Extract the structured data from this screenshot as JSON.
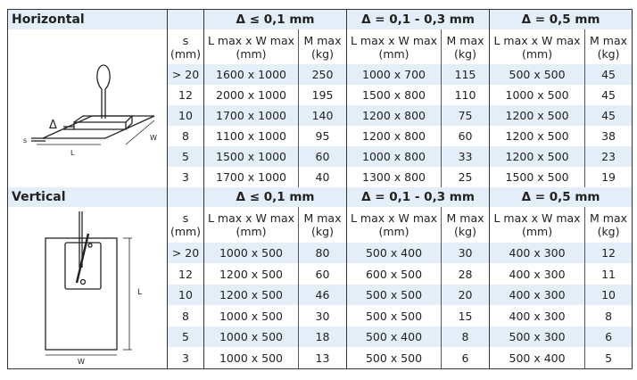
{
  "sections": [
    {
      "title": "Horizontal",
      "deltas": [
        "Δ ≤ 0,1 mm",
        "Δ = 0,1 - 0,3 mm",
        "Δ = 0,5 mm"
      ],
      "columns": {
        "s": [
          "s",
          "(mm)"
        ],
        "lw": [
          "L max x W max",
          "(mm)"
        ],
        "m": [
          "M max",
          "(kg)"
        ]
      },
      "diagram_labels": {
        "s": "s",
        "delta": "Δ",
        "l": "L",
        "w": "W"
      },
      "rows": [
        {
          "s": "> 20",
          "c": [
            "1600 x 1000",
            "250",
            "1000 x 700",
            "115",
            "500 x 500",
            "45"
          ]
        },
        {
          "s": "12",
          "c": [
            "2000 x 1000",
            "195",
            "1500 x 800",
            "110",
            "1000 x 500",
            "45"
          ]
        },
        {
          "s": "10",
          "c": [
            "1700 x 1000",
            "140",
            "1200 x 800",
            "75",
            "1200 x 500",
            "45"
          ]
        },
        {
          "s": "8",
          "c": [
            "1100 x 1000",
            "95",
            "1200 x 800",
            "60",
            "1200 x 500",
            "38"
          ]
        },
        {
          "s": "5",
          "c": [
            "1500 x 1000",
            "60",
            "1000 x 800",
            "33",
            "1200 x 500",
            "23"
          ]
        },
        {
          "s": "3",
          "c": [
            "1700 x 1000",
            "40",
            "1300 x 800",
            "25",
            "1500 x 500",
            "19"
          ]
        }
      ]
    },
    {
      "title": "Vertical",
      "deltas": [
        "Δ ≤ 0,1 mm",
        "Δ = 0,1 - 0,3 mm",
        "Δ = 0,5 mm"
      ],
      "columns": {
        "s": [
          "s",
          "(mm)"
        ],
        "lw": [
          "L max x W max",
          "(mm)"
        ],
        "m": [
          "M max",
          "(kg)"
        ]
      },
      "diagram_labels": {
        "l": "L",
        "w": "W"
      },
      "rows": [
        {
          "s": "> 20",
          "c": [
            "1000 x 500",
            "80",
            "500 x 400",
            "30",
            "400 x 300",
            "12"
          ]
        },
        {
          "s": "12",
          "c": [
            "1200 x 500",
            "60",
            "600 x 500",
            "28",
            "400 x 300",
            "11"
          ]
        },
        {
          "s": "10",
          "c": [
            "1200 x 500",
            "46",
            "500 x 500",
            "20",
            "400 x 300",
            "10"
          ]
        },
        {
          "s": "8",
          "c": [
            "1000 x 500",
            "30",
            "500 x 500",
            "15",
            "400 x 300",
            "8"
          ]
        },
        {
          "s": "5",
          "c": [
            "1000 x 500",
            "18",
            "500 x 400",
            "8",
            "500 x 300",
            "6"
          ]
        },
        {
          "s": "3",
          "c": [
            "1000 x 500",
            "13",
            "500 x 500",
            "6",
            "500 x 400",
            "5"
          ]
        }
      ]
    }
  ]
}
